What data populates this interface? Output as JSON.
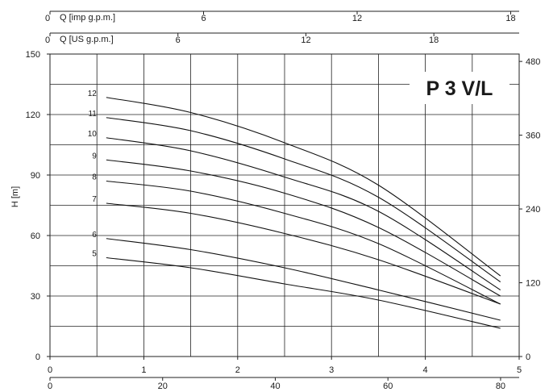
{
  "chart_data": {
    "type": "line",
    "title": "P 3 V/L",
    "ylabel": "H [m]",
    "xlim": [
      0,
      5
    ],
    "ylim": [
      0,
      150
    ],
    "grid": true,
    "top_axes": [
      {
        "label": "Q [imp g.p.m.]",
        "origin_tick": "0",
        "ticks": [
          6,
          12,
          18
        ],
        "max": 18.33
      },
      {
        "label": "Q [US g.p.m.]",
        "origin_tick": "0",
        "ticks": [
          6,
          12,
          18
        ],
        "max": 22.0
      }
    ],
    "bottom_axes": [
      {
        "ticks": [
          0,
          1,
          2,
          3,
          4,
          5
        ],
        "max": 5
      },
      {
        "ticks": [
          0,
          20,
          40,
          60,
          80
        ],
        "max": 83.3
      }
    ],
    "right_axis": {
      "ticks": [
        0,
        120,
        240,
        360,
        480
      ],
      "max": 492
    },
    "y_ticks": [
      0,
      30,
      60,
      90,
      120,
      150
    ],
    "series": [
      {
        "name": "5",
        "x": [
          0.6,
          1.5,
          2.5,
          3.5,
          4.8
        ],
        "y": [
          49,
          44,
          36,
          28,
          14
        ]
      },
      {
        "name": "6",
        "x": [
          0.6,
          1.5,
          2.5,
          3.5,
          4.8
        ],
        "y": [
          58.5,
          53,
          44,
          33,
          18
        ]
      },
      {
        "name": "7",
        "x": [
          0.6,
          1.5,
          2.5,
          3.5,
          4.8
        ],
        "y": [
          76,
          71,
          61,
          48,
          26
        ]
      },
      {
        "name": "8",
        "x": [
          0.6,
          1.5,
          2.5,
          3.5,
          4.8
        ],
        "y": [
          87,
          82,
          71,
          56,
          26
        ]
      },
      {
        "name": "9",
        "x": [
          0.6,
          1.5,
          2.5,
          3.5,
          4.8
        ],
        "y": [
          97.5,
          92,
          81,
          64,
          30
        ]
      },
      {
        "name": "10",
        "x": [
          0.6,
          1.5,
          2.5,
          3.5,
          4.8
        ],
        "y": [
          108.5,
          102,
          89,
          72,
          33
        ]
      },
      {
        "name": "11",
        "x": [
          0.6,
          1.5,
          2.5,
          3.5,
          4.8
        ],
        "y": [
          118.5,
          112,
          98,
          79,
          37
        ]
      },
      {
        "name": "12",
        "x": [
          0.6,
          1.5,
          2.5,
          3.5,
          4.8
        ],
        "y": [
          128.5,
          121,
          106,
          85,
          40
        ]
      }
    ]
  }
}
